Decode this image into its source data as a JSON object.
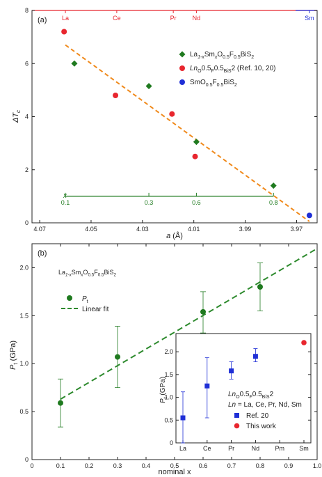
{
  "colors": {
    "green": "#1f7a1f",
    "red": "#e8262e",
    "blue": "#1f2fd6",
    "orange": "#f08a1c",
    "dashgreen": "#2d8a2d",
    "axis": "#222222"
  },
  "chart_data": [
    {
      "type": "scatter",
      "panel_label": "(a)",
      "xlabel_pre": "a",
      "xlabel_post": " (Å)",
      "ylabel": "ΔT",
      "ylabel_sub": "c",
      "xlim": [
        4.073,
        3.962
      ],
      "ylim": [
        0,
        8
      ],
      "x_ticks": [
        4.07,
        4.05,
        4.03,
        4.01,
        3.99,
        3.97
      ],
      "x_tick_labels": [
        "4.07",
        "4.05",
        "4.03",
        "4.01",
        "3.99",
        "3.97"
      ],
      "y_ticks": [
        0,
        2,
        4,
        6,
        8
      ],
      "y_tick_labels": [
        "0",
        "2",
        "4",
        "6",
        "8"
      ],
      "top_axis": {
        "labels": [
          {
            "text": "La",
            "a": 4.06,
            "color": "#e8262e"
          },
          {
            "text": "Ce",
            "a": 4.04,
            "color": "#e8262e"
          },
          {
            "text": "Pr",
            "a": 4.018,
            "color": "#e8262e"
          },
          {
            "text": "Nd",
            "a": 4.009,
            "color": "#e8262e"
          },
          {
            "text": "Sm",
            "a": 3.965,
            "color": "#1f2fd6"
          }
        ]
      },
      "x_scale": {
        "label": "x",
        "a_start": 4.06,
        "a_end": 3.979,
        "ticks": [
          {
            "text": "0.1",
            "a": 4.06
          },
          {
            "text": "0.3",
            "a": 4.0275
          },
          {
            "text": "0.6",
            "a": 4.009
          },
          {
            "text": "0.8",
            "a": 3.979
          }
        ],
        "y": 1.0
      },
      "series": [
        {
          "name_html": [
            "La",
            "1-x",
            "Sm",
            "x",
            "O",
            "0.5",
            "F",
            "0.5",
            "BiS",
            "2"
          ],
          "marker": "diamond",
          "color": "#1f7a1f",
          "x": [
            4.0565,
            4.0275,
            4.009,
            3.979
          ],
          "y": [
            6.0,
            5.15,
            3.05,
            1.4
          ]
        },
        {
          "name_html": [
            "Ln",
            "O",
            "0.5",
            "F",
            "0.5",
            "BiS",
            "2",
            "(Ref. 10, 20)"
          ],
          "marker": "circle",
          "color": "#e8262e",
          "x": [
            4.0605,
            4.0405,
            4.0185,
            4.0095
          ],
          "y": [
            7.2,
            4.8,
            4.1,
            2.5
          ]
        },
        {
          "name_html": [
            "SmO",
            "0.5",
            "F",
            "0.5",
            "BiS",
            "2"
          ],
          "marker": "circle",
          "color": "#1f2fd6",
          "x": [
            3.965
          ],
          "y": [
            0.28
          ]
        }
      ],
      "fit_line": {
        "x": [
          4.06,
          3.965
        ],
        "y": [
          6.7,
          0.05
        ]
      }
    },
    {
      "type": "scatter",
      "panel_label": "(b)",
      "xlabel": "nominal x",
      "ylabel": "P",
      "ylabel_sub": "t",
      "ylabel_unit": " (GPa)",
      "xlim": [
        0,
        1.0
      ],
      "ylim": [
        0,
        2.25
      ],
      "x_ticks": [
        0,
        0.1,
        0.2,
        0.3,
        0.4,
        0.5,
        0.6,
        0.7,
        0.8,
        0.9,
        1.0
      ],
      "x_tick_labels": [
        "0",
        "0.1",
        "0.2",
        "0.3",
        "0.4",
        "0.5",
        "0.6",
        "0.7",
        "0.8",
        "0.9",
        "1.0"
      ],
      "y_ticks": [
        0,
        0.5,
        1.0,
        1.5,
        2.0
      ],
      "y_tick_labels": [
        "0",
        "0.5",
        "1.0",
        "1.5",
        "2.0"
      ],
      "compound": [
        "La",
        "1-x",
        "Sm",
        "x",
        "O",
        "0.5",
        "F",
        "0.5",
        "BiS",
        "2"
      ],
      "legend": [
        {
          "label": "P",
          "sub": "t"
        },
        {
          "label": "Linear fit"
        }
      ],
      "series": [
        {
          "name": "Pt",
          "color": "#1f7a1f",
          "x": [
            0.1,
            0.3,
            0.6,
            0.8
          ],
          "y": [
            0.59,
            1.07,
            1.54,
            1.8
          ],
          "err_low": [
            0.34,
            0.75,
            1.32,
            1.55
          ],
          "err_high": [
            0.84,
            1.39,
            1.75,
            2.05
          ]
        }
      ],
      "fit_line": {
        "x": [
          0.1,
          1.0
        ],
        "y": [
          0.63,
          2.2
        ]
      }
    },
    {
      "type": "scatter",
      "inset": true,
      "ylabel": "P",
      "ylabel_sub": "t",
      "ylabel_unit": " (GPa)",
      "categories": [
        "La",
        "Ce",
        "Pr",
        "Nd",
        "Pm",
        "Sm"
      ],
      "ylim": [
        0,
        2.4
      ],
      "y_ticks": [
        0,
        0.5,
        1.0,
        1.5,
        2.0
      ],
      "y_tick_labels": [
        "0",
        "0.5",
        "1.0",
        "1.5",
        "2.0"
      ],
      "title_lines": [
        [
          "Ln",
          "O",
          "0.5",
          "F",
          "0.5",
          "BiS",
          "2"
        ],
        [
          "Ln",
          " = La, Ce, Pr, Nd, Sm"
        ]
      ],
      "series": [
        {
          "name": "Ref. 20",
          "marker": "square",
          "color": "#1f2fd6",
          "x": [
            0,
            1,
            2,
            3
          ],
          "y": [
            0.55,
            1.25,
            1.58,
            1.9
          ],
          "err_low": [
            0.0,
            0.55,
            1.4,
            1.78
          ],
          "err_high": [
            1.12,
            1.87,
            1.78,
            2.07
          ]
        },
        {
          "name": "This work",
          "marker": "circle",
          "color": "#e8262e",
          "x": [
            5
          ],
          "y": [
            2.2
          ]
        }
      ]
    }
  ]
}
